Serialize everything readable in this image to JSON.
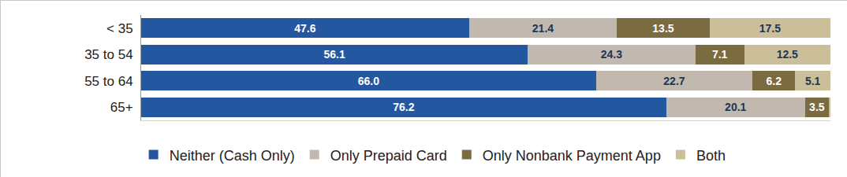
{
  "chart_data": {
    "type": "bar",
    "orientation": "horizontal",
    "stacked": true,
    "data_labels": true,
    "tick_labels": "y",
    "legend": "bottom",
    "categories": [
      "< 35",
      "35 to 54",
      "55 to 64",
      "65+"
    ],
    "xlim": [
      0,
      100
    ],
    "series": [
      {
        "name": "Neither (Cash Only)",
        "color": "#2357a0",
        "values": [
          47.6,
          56.1,
          66.0,
          76.2
        ],
        "value_labels": [
          "47.6",
          "56.1",
          "66.0",
          "76.2"
        ]
      },
      {
        "name": "Only Prepaid Card",
        "color": "#c1b9b0",
        "values": [
          21.4,
          24.3,
          22.7,
          20.1
        ]
      },
      {
        "name": "Only Nonbank Payment App",
        "color": "#7b6b41",
        "values": [
          13.5,
          7.1,
          6.2,
          3.5
        ]
      },
      {
        "name": "Both",
        "color": "#cbbf9a",
        "values": [
          17.5,
          12.5,
          5.1,
          0.2
        ],
        "value_labels": [
          "17.5",
          "12.5",
          "5.1",
          null
        ]
      }
    ]
  }
}
